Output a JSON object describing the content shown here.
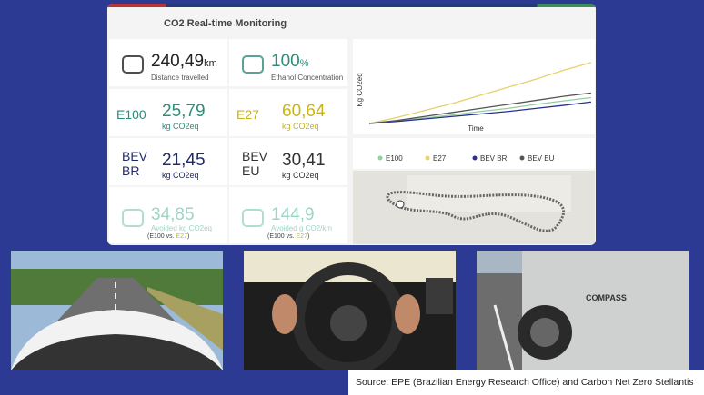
{
  "header": {
    "title": "CO2 Real-time Monitoring"
  },
  "cards": [
    {
      "value": "240,49",
      "unit": "km",
      "label": "Distance travelled",
      "color": "#222"
    },
    {
      "value": "100",
      "unit": "%",
      "label": "Ethanol Concentration",
      "color": "#2e8c78"
    },
    {
      "fuel": "E100",
      "value": "25,79",
      "unit": "kg CO2eq",
      "color": "#2e8c78"
    },
    {
      "fuel": "E27",
      "value": "60,64",
      "unit": "kg CO2eq",
      "color": "#c8b31a"
    },
    {
      "fuel_lines": [
        "BEV",
        "BR"
      ],
      "value": "21,45",
      "unit": "kg CO2eq",
      "color": "#1f2a6b"
    },
    {
      "fuel_lines": [
        "BEV",
        "EU"
      ],
      "value": "30,41",
      "unit": "kg CO2eq",
      "color": "#333"
    },
    {
      "value": "34,85",
      "label": "Avoided kg CO2eq",
      "note": [
        "(E100 vs. ",
        "E27",
        ")"
      ],
      "color": "#9fd4c7"
    },
    {
      "value": "144,9",
      "label": "Avoided g CO2/km",
      "note": [
        "(E100 vs. ",
        "E27",
        ")"
      ],
      "color": "#9fd4c7"
    }
  ],
  "chart": {
    "type": "line",
    "y_label": "Kg CO2eq",
    "x_label": "Time",
    "ylim": [
      0,
      75
    ],
    "series": [
      {
        "name": "E100",
        "color": "#8fd19e",
        "values": [
          0,
          2.5,
          5.5,
          8.5,
          12,
          15,
          19,
          22.5,
          25.79
        ]
      },
      {
        "name": "E27",
        "color": "#e3d26a",
        "values": [
          0,
          6,
          13,
          20,
          28,
          36,
          44,
          53,
          60.64
        ]
      },
      {
        "name": "BEV BR",
        "color": "#2b2f8f",
        "values": [
          0,
          2,
          4.5,
          7,
          9.5,
          12,
          15,
          18,
          21.45
        ]
      },
      {
        "name": "BEV EU",
        "color": "#555",
        "values": [
          0,
          3,
          7,
          11,
          15,
          19,
          23,
          27,
          30.41
        ]
      }
    ]
  },
  "source": "Source: EPE (Brazilian Energy Research Office) and Carbon Net Zero Stellantis"
}
